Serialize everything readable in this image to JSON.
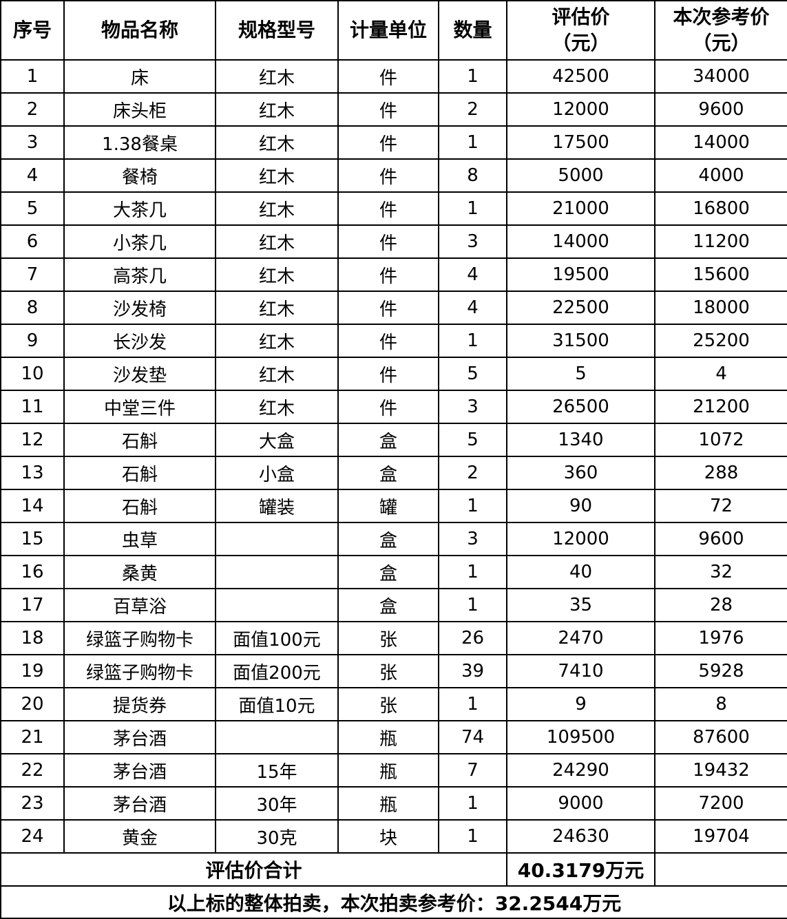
{
  "headers": [
    "序号",
    "物品名称",
    "规格型号",
    "计量单位",
    "数量",
    "评估价\n（元）",
    "本次参考价\n（元）"
  ],
  "rows": [
    [
      "1",
      "床",
      "红木",
      "件",
      "1",
      "42500",
      "34000"
    ],
    [
      "2",
      "床头柜",
      "红木",
      "件",
      "2",
      "12000",
      "9600"
    ],
    [
      "3",
      "1.38餐桌",
      "红木",
      "件",
      "1",
      "17500",
      "14000"
    ],
    [
      "4",
      "餐椅",
      "红木",
      "件",
      "8",
      "5000",
      "4000"
    ],
    [
      "5",
      "大茶几",
      "红木",
      "件",
      "1",
      "21000",
      "16800"
    ],
    [
      "6",
      "小茶几",
      "红木",
      "件",
      "3",
      "14000",
      "11200"
    ],
    [
      "7",
      "高茶几",
      "红木",
      "件",
      "4",
      "19500",
      "15600"
    ],
    [
      "8",
      "沙发椅",
      "红木",
      "件",
      "4",
      "22500",
      "18000"
    ],
    [
      "9",
      "长沙发",
      "红木",
      "件",
      "1",
      "31500",
      "25200"
    ],
    [
      "10",
      "沙发垫",
      "红木",
      "件",
      "5",
      "5",
      "4"
    ],
    [
      "11",
      "中堂三件",
      "红木",
      "件",
      "3",
      "26500",
      "21200"
    ],
    [
      "12",
      "石斛",
      "大盒",
      "盒",
      "5",
      "1340",
      "1072"
    ],
    [
      "13",
      "石斛",
      "小盒",
      "盒",
      "2",
      "360",
      "288"
    ],
    [
      "14",
      "石斛",
      "罐装",
      "罐",
      "1",
      "90",
      "72"
    ],
    [
      "15",
      "虫草",
      "",
      "盒",
      "3",
      "12000",
      "9600"
    ],
    [
      "16",
      "桑黄",
      "",
      "盒",
      "1",
      "40",
      "32"
    ],
    [
      "17",
      "百草浴",
      "",
      "盒",
      "1",
      "35",
      "28"
    ],
    [
      "18",
      "绿篮子购物卡",
      "面值100元",
      "张",
      "26",
      "2470",
      "1976"
    ],
    [
      "19",
      "绿篮子购物卡",
      "面值200元",
      "张",
      "39",
      "7410",
      "5928"
    ],
    [
      "20",
      "提货券",
      "面值10元",
      "张",
      "1",
      "9",
      "8"
    ],
    [
      "21",
      "茅台酒",
      "",
      "瓶",
      "74",
      "109500",
      "87600"
    ],
    [
      "22",
      "茅台酒",
      "15年",
      "瓶",
      "7",
      "24290",
      "19432"
    ],
    [
      "23",
      "茅台酒",
      "30年",
      "瓶",
      "1",
      "9000",
      "7200"
    ],
    [
      "24",
      "黄金",
      "30克",
      "块",
      "1",
      "24630",
      "19704"
    ]
  ],
  "total": {
    "label": "评估价合计",
    "value": "40.3179万元",
    "reference": ""
  },
  "summary": "以上标的整体拍卖，本次拍卖参考价：32.2544万元"
}
